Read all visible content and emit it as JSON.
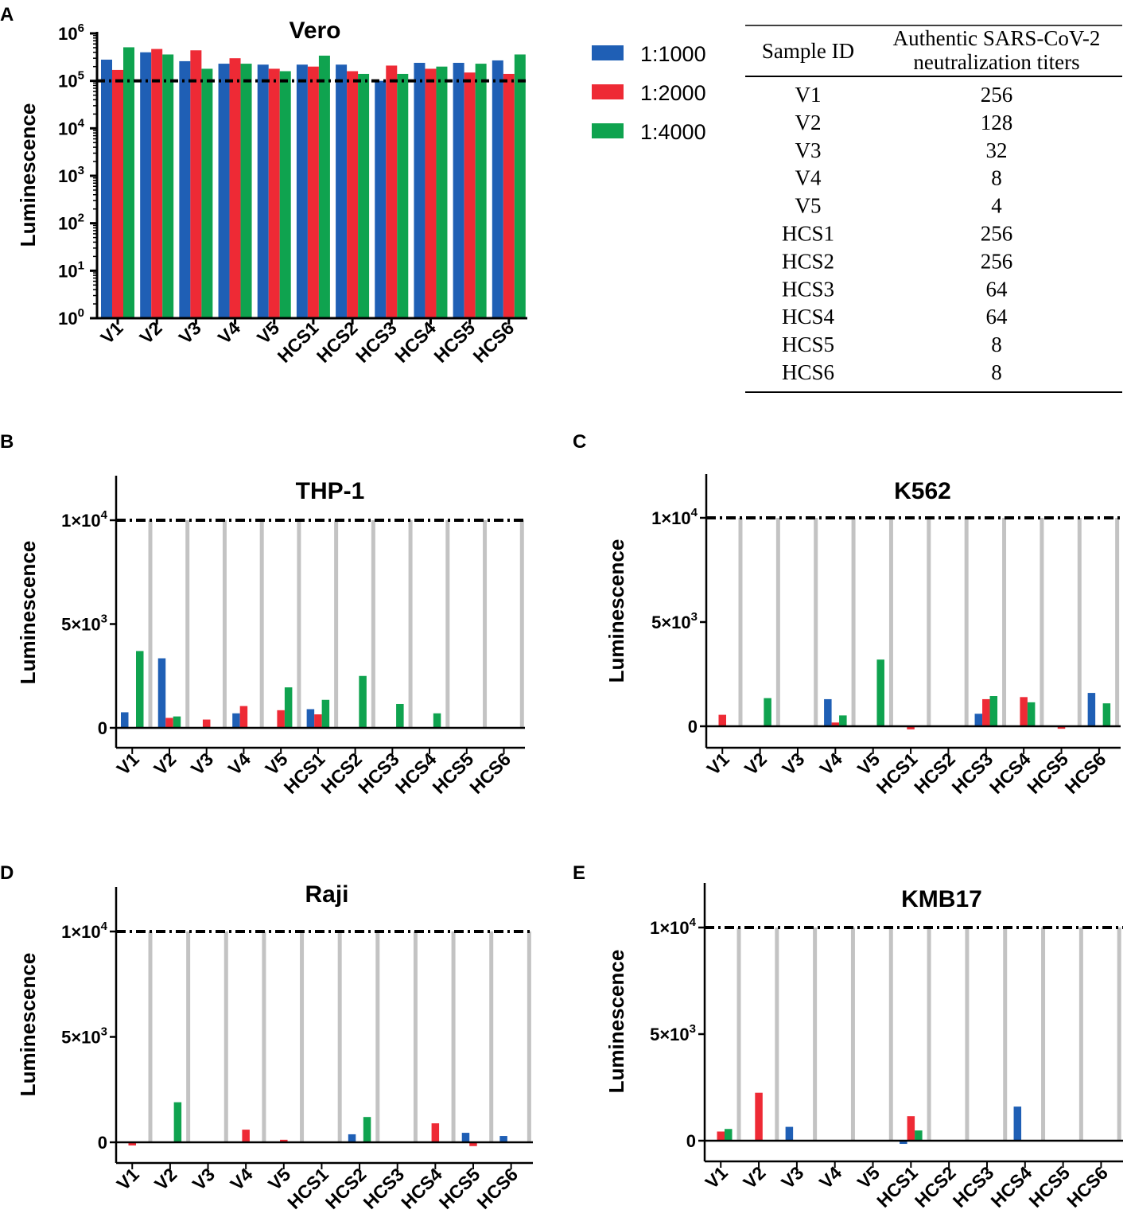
{
  "colors": {
    "blue": "#1f5fb5",
    "red": "#ee2a35",
    "green": "#0fa34f",
    "gray": "#c3c3c3"
  },
  "legend": [
    {
      "label": "1:1000",
      "color": "#1f5fb5"
    },
    {
      "label": "1:2000",
      "color": "#ee2a35"
    },
    {
      "label": "1:4000",
      "color": "#0fa34f"
    }
  ],
  "table": {
    "headers": [
      "Sample ID",
      "Authentic SARS-CoV-2",
      "neutralization titers"
    ],
    "rows": [
      [
        "V1",
        "256"
      ],
      [
        "V2",
        "128"
      ],
      [
        "V3",
        "32"
      ],
      [
        "V4",
        "8"
      ],
      [
        "V5",
        "4"
      ],
      [
        "HCS1",
        "256"
      ],
      [
        "HCS2",
        "256"
      ],
      [
        "HCS3",
        "64"
      ],
      [
        "HCS4",
        "64"
      ],
      [
        "HCS5",
        "8"
      ],
      [
        "HCS6",
        "8"
      ]
    ]
  },
  "chart_data": [
    {
      "panel": "A",
      "title": "Vero",
      "type": "bar",
      "yscale": "log",
      "ylabel": "Luminescence",
      "yticks": [
        {
          "base": "10",
          "exp": "0"
        },
        {
          "base": "10",
          "exp": "1"
        },
        {
          "base": "10",
          "exp": "2"
        },
        {
          "base": "10",
          "exp": "3"
        },
        {
          "base": "10",
          "exp": "4"
        },
        {
          "base": "10",
          "exp": "5"
        },
        {
          "base": "10",
          "exp": "6"
        }
      ],
      "ylim": [
        1,
        1000000
      ],
      "threshold": 100000,
      "categories": [
        "V1",
        "V2",
        "V3",
        "V4",
        "V5",
        "HCS1",
        "HCS2",
        "HCS3",
        "HCS4",
        "HCS5",
        "HCS6"
      ],
      "series": [
        {
          "name": "1:1000",
          "values": [
            280000,
            400000,
            260000,
            230000,
            220000,
            220000,
            220000,
            100000,
            240000,
            240000,
            270000
          ]
        },
        {
          "name": "1:2000",
          "values": [
            170000,
            470000,
            440000,
            300000,
            180000,
            200000,
            160000,
            210000,
            180000,
            150000,
            140000
          ]
        },
        {
          "name": "1:4000",
          "values": [
            510000,
            360000,
            180000,
            230000,
            160000,
            340000,
            140000,
            140000,
            200000,
            230000,
            360000
          ]
        }
      ]
    },
    {
      "panel": "B",
      "title": "THP-1",
      "type": "bar",
      "yscale": "linear",
      "ylabel": "Luminescence",
      "yticks": [
        {
          "base": "0",
          "exp": ""
        },
        {
          "base": "5×10",
          "exp": "3"
        },
        {
          "base": "1×10",
          "exp": "4"
        }
      ],
      "ylim": [
        -900,
        12000
      ],
      "threshold": 10000,
      "reference": 10000,
      "categories": [
        "V1",
        "V2",
        "V3",
        "V4",
        "V5",
        "HCS1",
        "HCS2",
        "HCS3",
        "HCS4",
        "HCS5",
        "HCS6"
      ],
      "series": [
        {
          "name": "1:1000",
          "values": [
            750,
            3350,
            0,
            700,
            0,
            900,
            0,
            0,
            0,
            0,
            0
          ]
        },
        {
          "name": "1:2000",
          "values": [
            0,
            480,
            400,
            1050,
            850,
            650,
            0,
            0,
            0,
            0,
            0
          ]
        },
        {
          "name": "1:4000",
          "values": [
            3700,
            550,
            0,
            0,
            1950,
            1350,
            2500,
            1150,
            700,
            0,
            0
          ]
        }
      ]
    },
    {
      "panel": "C",
      "title": "K562",
      "type": "bar",
      "yscale": "linear",
      "ylabel": "Luminescence",
      "yticks": [
        {
          "base": "0",
          "exp": ""
        },
        {
          "base": "5×10",
          "exp": "3"
        },
        {
          "base": "1×10",
          "exp": "4"
        }
      ],
      "ylim": [
        -900,
        12000
      ],
      "threshold": 10000,
      "reference": 10000,
      "categories": [
        "V1",
        "V2",
        "V3",
        "V4",
        "V5",
        "HCS1",
        "HCS2",
        "HCS3",
        "HCS4",
        "HCS5",
        "HCS6"
      ],
      "series": [
        {
          "name": "1:1000",
          "values": [
            0,
            0,
            0,
            1300,
            0,
            0,
            0,
            600,
            0,
            0,
            1600
          ]
        },
        {
          "name": "1:2000",
          "values": [
            550,
            0,
            0,
            180,
            0,
            -150,
            0,
            1300,
            1400,
            -120,
            0
          ]
        },
        {
          "name": "1:4000",
          "values": [
            0,
            1350,
            0,
            520,
            3200,
            0,
            0,
            1450,
            1150,
            0,
            1100
          ]
        }
      ]
    },
    {
      "panel": "D",
      "title": "Raji",
      "type": "bar",
      "yscale": "linear",
      "ylabel": "Luminescence",
      "yticks": [
        {
          "base": "0",
          "exp": ""
        },
        {
          "base": "5×10",
          "exp": "3"
        },
        {
          "base": "1×10",
          "exp": "4"
        }
      ],
      "ylim": [
        -900,
        12000
      ],
      "threshold": 10000,
      "reference": 10000,
      "categories": [
        "V1",
        "V2",
        "V3",
        "V4",
        "V5",
        "HCS1",
        "HCS2",
        "HCS3",
        "HCS4",
        "HCS5",
        "HCS6"
      ],
      "series": [
        {
          "name": "1:1000",
          "values": [
            0,
            0,
            0,
            0,
            0,
            0,
            380,
            0,
            0,
            450,
            300
          ]
        },
        {
          "name": "1:2000",
          "values": [
            -150,
            0,
            0,
            600,
            120,
            0,
            0,
            0,
            900,
            -180,
            0
          ]
        },
        {
          "name": "1:4000",
          "values": [
            0,
            1900,
            0,
            0,
            0,
            0,
            1200,
            0,
            0,
            0,
            0
          ]
        }
      ]
    },
    {
      "panel": "E",
      "title": "KMB17",
      "type": "bar",
      "yscale": "linear",
      "ylabel": "Luminescence",
      "yticks": [
        {
          "base": "0",
          "exp": ""
        },
        {
          "base": "5×10",
          "exp": "3"
        },
        {
          "base": "1×10",
          "exp": "4"
        }
      ],
      "ylim": [
        -900,
        12000
      ],
      "threshold": 10000,
      "reference": 10000,
      "categories": [
        "V1",
        "V2",
        "V3",
        "V4",
        "V5",
        "HCS1",
        "HCS2",
        "HCS3",
        "HCS4",
        "HCS5",
        "HCS6"
      ],
      "series": [
        {
          "name": "1:1000",
          "values": [
            0,
            0,
            650,
            0,
            0,
            -150,
            0,
            0,
            1600,
            0,
            0
          ]
        },
        {
          "name": "1:2000",
          "values": [
            430,
            2250,
            0,
            0,
            0,
            1150,
            0,
            0,
            0,
            0,
            0
          ]
        },
        {
          "name": "1:4000",
          "values": [
            550,
            0,
            0,
            0,
            0,
            480,
            0,
            0,
            0,
            0,
            0
          ]
        }
      ]
    }
  ]
}
